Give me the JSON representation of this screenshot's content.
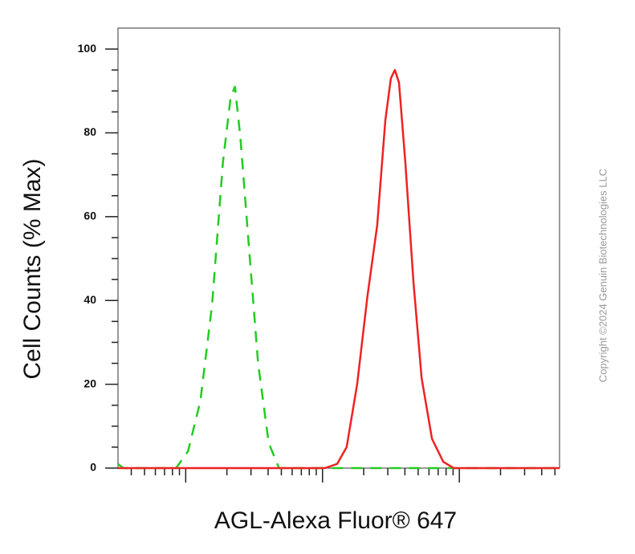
{
  "chart_data": {
    "type": "line",
    "x_label": "AGL-Alexa Fluor® 647",
    "y_label": "Cell Counts (% Max)",
    "watermark": "Copyright ©2024 Genuin Biotechnologies LLC",
    "log_x": true,
    "xlim": [
      3.2,
      5400
    ],
    "xticks": [
      10,
      100,
      1000
    ],
    "xminorticks": [
      4,
      5,
      6,
      7,
      8,
      9,
      20,
      30,
      40,
      50,
      60,
      70,
      80,
      90,
      200,
      300,
      400,
      500,
      600,
      700,
      800,
      900,
      2000,
      3000,
      4000,
      5000
    ],
    "ylim": [
      0,
      105
    ],
    "yticks": [
      0,
      20,
      40,
      60,
      80,
      100
    ],
    "yminorticks": [
      5,
      10,
      15,
      25,
      30,
      35,
      45,
      50,
      55,
      65,
      70,
      75,
      85,
      90,
      95
    ],
    "series": [
      {
        "color": "#22cc22",
        "dashed": true,
        "x": [
          3.2,
          3.5,
          8.5,
          10.4,
          12.8,
          15.6,
          18.7,
          21.3,
          22.9,
          25.1,
          28.8,
          33.8,
          40.4,
          48.1,
          5400
        ],
        "values": [
          1,
          0,
          0,
          4,
          16,
          39,
          73,
          88.5,
          91,
          79,
          54,
          25,
          6,
          0,
          0
        ]
      },
      {
        "color": "#ee2222",
        "dashed": false,
        "x": [
          3.2,
          104,
          128,
          150,
          179,
          213,
          251,
          288,
          316,
          338,
          362,
          403,
          462,
          530,
          631,
          763,
          910,
          5400
        ],
        "values": [
          0,
          0,
          1,
          5,
          20,
          41,
          58,
          83,
          93,
          95,
          92,
          73,
          44.5,
          21.5,
          7,
          1.5,
          0,
          0
        ]
      }
    ]
  }
}
